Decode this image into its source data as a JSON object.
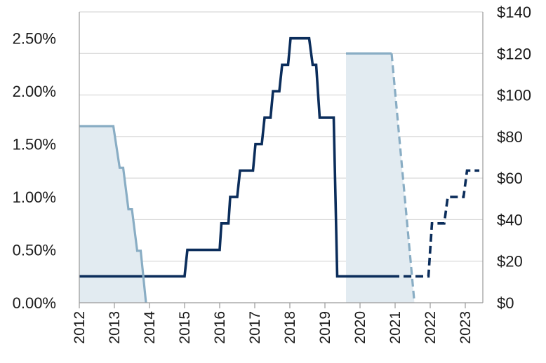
{
  "chart_data": {
    "type": "line",
    "title": "",
    "xlabel": "",
    "ylabel_left": "",
    "ylabel_right": "",
    "xlim": [
      2012.0,
      2023.5
    ],
    "ylim_left": [
      0,
      2.75
    ],
    "ylim_right": [
      0,
      140
    ],
    "grid": true,
    "legend": "none",
    "x_ticks": [
      "2012",
      "2013",
      "2014",
      "2015",
      "2016",
      "2017",
      "2018",
      "2019",
      "2020",
      "2021",
      "2022",
      "2023"
    ],
    "y_left_ticks": [
      "0.00%",
      "0.50%",
      "1.00%",
      "1.50%",
      "2.00%",
      "2.50%"
    ],
    "y_right_ticks": [
      "$0",
      "$20",
      "$40",
      "$60",
      "$80",
      "$100",
      "$120",
      "$140"
    ],
    "series": [
      {
        "axis": "left",
        "color": "#0b2d5b",
        "style": "solid",
        "points": [
          [
            2012.0,
            0.25
          ],
          [
            2015.0,
            0.25
          ],
          [
            2015.08,
            0.5
          ],
          [
            2016.0,
            0.5
          ],
          [
            2016.05,
            0.75
          ],
          [
            2016.25,
            0.75
          ],
          [
            2016.3,
            1.0
          ],
          [
            2016.5,
            1.0
          ],
          [
            2016.58,
            1.25
          ],
          [
            2016.95,
            1.25
          ],
          [
            2017.02,
            1.5
          ],
          [
            2017.2,
            1.5
          ],
          [
            2017.28,
            1.75
          ],
          [
            2017.45,
            1.75
          ],
          [
            2017.52,
            2.0
          ],
          [
            2017.7,
            2.0
          ],
          [
            2017.78,
            2.25
          ],
          [
            2017.95,
            2.25
          ],
          [
            2018.02,
            2.5
          ],
          [
            2018.55,
            2.5
          ],
          [
            2018.65,
            2.25
          ],
          [
            2018.75,
            2.25
          ],
          [
            2018.85,
            1.75
          ],
          [
            2019.25,
            1.75
          ],
          [
            2019.35,
            0.25
          ],
          [
            2020.9,
            0.25
          ]
        ]
      },
      {
        "axis": "left",
        "color": "#0b2d5b",
        "style": "dashed",
        "points": [
          [
            2020.9,
            0.25
          ],
          [
            2021.95,
            0.25
          ],
          [
            2022.05,
            0.75
          ],
          [
            2022.4,
            0.75
          ],
          [
            2022.5,
            1.0
          ],
          [
            2022.95,
            1.0
          ],
          [
            2023.05,
            1.25
          ],
          [
            2023.4,
            1.25
          ]
        ]
      },
      {
        "axis": "right",
        "color": "#89adc4",
        "fill": "#e2ebf1",
        "style": "solid",
        "points": [
          [
            2012.0,
            85
          ],
          [
            2012.97,
            85
          ],
          [
            2013.15,
            65
          ],
          [
            2013.25,
            65
          ],
          [
            2013.4,
            45
          ],
          [
            2013.5,
            45
          ],
          [
            2013.65,
            25
          ],
          [
            2013.75,
            25
          ],
          [
            2013.9,
            0
          ]
        ]
      },
      {
        "axis": "right",
        "color": "#89adc4",
        "fill": "#e2ebf1",
        "style": "solid",
        "points": [
          [
            2019.6,
            120
          ],
          [
            2020.9,
            120
          ]
        ]
      },
      {
        "axis": "right",
        "color": "#89adc4",
        "fill": "#e2ebf1",
        "style": "dashed",
        "points": [
          [
            2020.9,
            120
          ],
          [
            2021.55,
            0
          ]
        ]
      }
    ]
  }
}
